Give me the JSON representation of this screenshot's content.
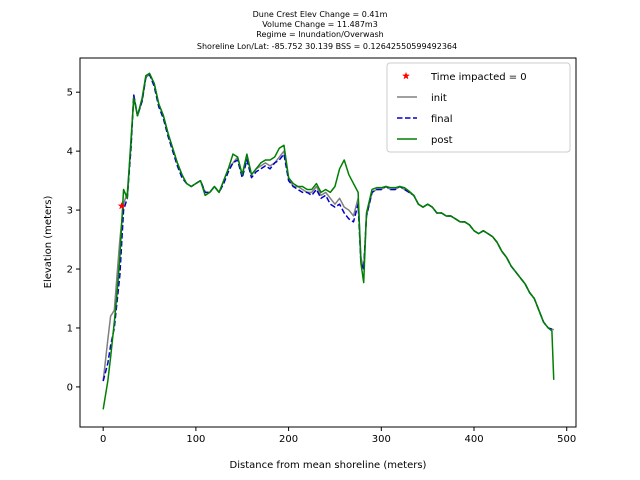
{
  "chart_data": {
    "type": "line",
    "title_lines": [
      "Dune Crest Elev Change = 0.41m",
      "Volume Change = 11.487m3",
      "Regime = Inundation/Overwash",
      "Shoreline Lon/Lat: -85.752 30.139   BSS = 0.12642550599492364"
    ],
    "xlabel": "Distance from mean shoreline (meters)",
    "ylabel": "Elevation (meters)",
    "xlim": [
      -25,
      510
    ],
    "ylim": [
      -0.68,
      5.58
    ],
    "xticks": [
      0,
      100,
      200,
      300,
      400,
      500
    ],
    "yticks": [
      0,
      1,
      2,
      3,
      4,
      5
    ],
    "grid": false,
    "legend_position": "top-right",
    "markers": [
      {
        "name": "Time impacted = 0",
        "color": "#ff0000",
        "symbol": "star",
        "points": [
          [
            20,
            3.07
          ]
        ]
      }
    ],
    "series": [
      {
        "name": "init",
        "color": "#808080",
        "style": "solid",
        "points": [
          [
            0,
            0.1
          ],
          [
            5,
            0.8
          ],
          [
            8,
            1.2
          ],
          [
            12,
            1.3
          ],
          [
            15,
            1.9
          ],
          [
            18,
            2.5
          ],
          [
            22,
            3.1
          ],
          [
            26,
            3.3
          ],
          [
            30,
            4.1
          ],
          [
            33,
            4.95
          ],
          [
            37,
            4.6
          ],
          [
            42,
            4.85
          ],
          [
            46,
            5.25
          ],
          [
            50,
            5.3
          ],
          [
            55,
            5.15
          ],
          [
            60,
            4.8
          ],
          [
            65,
            4.6
          ],
          [
            70,
            4.3
          ],
          [
            75,
            4.05
          ],
          [
            80,
            3.8
          ],
          [
            85,
            3.6
          ],
          [
            90,
            3.45
          ],
          [
            95,
            3.4
          ],
          [
            100,
            3.45
          ],
          [
            105,
            3.5
          ],
          [
            110,
            3.3
          ],
          [
            115,
            3.3
          ],
          [
            120,
            3.4
          ],
          [
            125,
            3.3
          ],
          [
            130,
            3.5
          ],
          [
            135,
            3.7
          ],
          [
            140,
            3.8
          ],
          [
            145,
            3.9
          ],
          [
            150,
            3.6
          ],
          [
            155,
            3.9
          ],
          [
            160,
            3.6
          ],
          [
            165,
            3.7
          ],
          [
            170,
            3.75
          ],
          [
            175,
            3.8
          ],
          [
            180,
            3.75
          ],
          [
            185,
            3.8
          ],
          [
            190,
            3.9
          ],
          [
            195,
            4.0
          ],
          [
            200,
            3.55
          ],
          [
            205,
            3.4
          ],
          [
            210,
            3.4
          ],
          [
            215,
            3.35
          ],
          [
            220,
            3.3
          ],
          [
            225,
            3.3
          ],
          [
            230,
            3.4
          ],
          [
            235,
            3.25
          ],
          [
            240,
            3.3
          ],
          [
            245,
            3.2
          ],
          [
            250,
            3.1
          ],
          [
            255,
            3.2
          ],
          [
            260,
            3.05
          ],
          [
            265,
            3.0
          ],
          [
            270,
            2.9
          ],
          [
            275,
            3.2
          ],
          [
            278,
            2.2
          ],
          [
            281,
            2.0
          ],
          [
            284,
            2.9
          ],
          [
            290,
            3.3
          ],
          [
            295,
            3.35
          ],
          [
            300,
            3.35
          ],
          [
            305,
            3.4
          ],
          [
            310,
            3.35
          ],
          [
            315,
            3.35
          ],
          [
            320,
            3.4
          ],
          [
            325,
            3.35
          ],
          [
            330,
            3.3
          ],
          [
            335,
            3.25
          ],
          [
            340,
            3.1
          ],
          [
            345,
            3.05
          ],
          [
            350,
            3.1
          ],
          [
            355,
            3.05
          ],
          [
            360,
            2.95
          ],
          [
            365,
            2.95
          ],
          [
            370,
            2.9
          ],
          [
            375,
            2.9
          ],
          [
            380,
            2.85
          ],
          [
            385,
            2.8
          ],
          [
            390,
            2.8
          ],
          [
            395,
            2.75
          ],
          [
            400,
            2.65
          ],
          [
            405,
            2.6
          ],
          [
            410,
            2.65
          ],
          [
            415,
            2.6
          ],
          [
            420,
            2.55
          ],
          [
            425,
            2.45
          ],
          [
            430,
            2.3
          ],
          [
            435,
            2.2
          ],
          [
            440,
            2.05
          ],
          [
            445,
            1.95
          ],
          [
            450,
            1.85
          ],
          [
            455,
            1.75
          ],
          [
            460,
            1.6
          ],
          [
            465,
            1.5
          ],
          [
            470,
            1.3
          ],
          [
            475,
            1.1
          ],
          [
            480,
            1.0
          ],
          [
            486,
            0.97
          ]
        ]
      },
      {
        "name": "final",
        "color": "#0000cc",
        "style": "dashed",
        "points": [
          [
            0,
            0.1
          ],
          [
            5,
            0.4
          ],
          [
            8,
            0.7
          ],
          [
            12,
            1.0
          ],
          [
            15,
            1.45
          ],
          [
            18,
            1.9
          ],
          [
            22,
            3.0
          ],
          [
            26,
            3.2
          ],
          [
            30,
            4.05
          ],
          [
            33,
            4.95
          ],
          [
            37,
            4.6
          ],
          [
            42,
            4.85
          ],
          [
            46,
            5.25
          ],
          [
            50,
            5.3
          ],
          [
            55,
            5.1
          ],
          [
            60,
            4.75
          ],
          [
            65,
            4.55
          ],
          [
            70,
            4.25
          ],
          [
            75,
            4.0
          ],
          [
            80,
            3.75
          ],
          [
            85,
            3.55
          ],
          [
            90,
            3.45
          ],
          [
            95,
            3.4
          ],
          [
            100,
            3.45
          ],
          [
            105,
            3.5
          ],
          [
            110,
            3.3
          ],
          [
            115,
            3.3
          ],
          [
            120,
            3.4
          ],
          [
            125,
            3.3
          ],
          [
            130,
            3.45
          ],
          [
            135,
            3.65
          ],
          [
            140,
            3.8
          ],
          [
            145,
            3.85
          ],
          [
            150,
            3.55
          ],
          [
            155,
            3.85
          ],
          [
            160,
            3.55
          ],
          [
            165,
            3.65
          ],
          [
            170,
            3.7
          ],
          [
            175,
            3.75
          ],
          [
            180,
            3.7
          ],
          [
            185,
            3.8
          ],
          [
            190,
            3.85
          ],
          [
            195,
            3.95
          ],
          [
            200,
            3.5
          ],
          [
            205,
            3.4
          ],
          [
            210,
            3.35
          ],
          [
            215,
            3.3
          ],
          [
            220,
            3.3
          ],
          [
            225,
            3.25
          ],
          [
            230,
            3.35
          ],
          [
            235,
            3.2
          ],
          [
            240,
            3.25
          ],
          [
            245,
            3.1
          ],
          [
            250,
            3.05
          ],
          [
            255,
            3.1
          ],
          [
            260,
            2.95
          ],
          [
            265,
            2.85
          ],
          [
            270,
            2.8
          ],
          [
            275,
            3.1
          ],
          [
            278,
            2.1
          ],
          [
            281,
            2.0
          ],
          [
            284,
            2.9
          ],
          [
            290,
            3.3
          ],
          [
            295,
            3.35
          ],
          [
            300,
            3.35
          ],
          [
            305,
            3.4
          ],
          [
            310,
            3.35
          ],
          [
            315,
            3.35
          ],
          [
            320,
            3.4
          ],
          [
            325,
            3.35
          ],
          [
            330,
            3.3
          ],
          [
            335,
            3.25
          ],
          [
            340,
            3.1
          ],
          [
            345,
            3.05
          ],
          [
            350,
            3.1
          ],
          [
            355,
            3.05
          ],
          [
            360,
            2.95
          ],
          [
            365,
            2.95
          ],
          [
            370,
            2.9
          ],
          [
            375,
            2.9
          ],
          [
            380,
            2.85
          ],
          [
            385,
            2.8
          ],
          [
            390,
            2.8
          ],
          [
            395,
            2.75
          ],
          [
            400,
            2.65
          ],
          [
            405,
            2.6
          ],
          [
            410,
            2.65
          ],
          [
            415,
            2.6
          ],
          [
            420,
            2.55
          ],
          [
            425,
            2.45
          ],
          [
            430,
            2.3
          ],
          [
            435,
            2.2
          ],
          [
            440,
            2.05
          ],
          [
            445,
            1.95
          ],
          [
            450,
            1.85
          ],
          [
            455,
            1.75
          ],
          [
            460,
            1.6
          ],
          [
            465,
            1.5
          ],
          [
            470,
            1.3
          ],
          [
            475,
            1.1
          ],
          [
            480,
            1.0
          ],
          [
            486,
            0.97
          ]
        ]
      },
      {
        "name": "post",
        "color": "#008000",
        "style": "solid",
        "points": [
          [
            0,
            -0.38
          ],
          [
            5,
            0.1
          ],
          [
            8,
            0.5
          ],
          [
            12,
            1.1
          ],
          [
            15,
            1.6
          ],
          [
            18,
            2.2
          ],
          [
            22,
            3.35
          ],
          [
            26,
            3.2
          ],
          [
            30,
            4.2
          ],
          [
            33,
            4.9
          ],
          [
            37,
            4.6
          ],
          [
            42,
            4.9
          ],
          [
            46,
            5.28
          ],
          [
            50,
            5.32
          ],
          [
            55,
            5.15
          ],
          [
            60,
            4.8
          ],
          [
            65,
            4.6
          ],
          [
            70,
            4.3
          ],
          [
            75,
            4.05
          ],
          [
            80,
            3.8
          ],
          [
            85,
            3.6
          ],
          [
            90,
            3.45
          ],
          [
            95,
            3.4
          ],
          [
            100,
            3.45
          ],
          [
            105,
            3.5
          ],
          [
            110,
            3.25
          ],
          [
            115,
            3.3
          ],
          [
            120,
            3.4
          ],
          [
            125,
            3.3
          ],
          [
            130,
            3.5
          ],
          [
            135,
            3.7
          ],
          [
            140,
            3.95
          ],
          [
            145,
            3.9
          ],
          [
            150,
            3.6
          ],
          [
            155,
            3.95
          ],
          [
            160,
            3.6
          ],
          [
            165,
            3.7
          ],
          [
            170,
            3.8
          ],
          [
            175,
            3.85
          ],
          [
            180,
            3.85
          ],
          [
            185,
            3.9
          ],
          [
            190,
            4.05
          ],
          [
            195,
            4.1
          ],
          [
            200,
            3.55
          ],
          [
            205,
            3.45
          ],
          [
            210,
            3.4
          ],
          [
            215,
            3.4
          ],
          [
            220,
            3.35
          ],
          [
            225,
            3.35
          ],
          [
            230,
            3.45
          ],
          [
            235,
            3.3
          ],
          [
            240,
            3.35
          ],
          [
            245,
            3.3
          ],
          [
            250,
            3.4
          ],
          [
            255,
            3.7
          ],
          [
            260,
            3.85
          ],
          [
            265,
            3.6
          ],
          [
            270,
            3.45
          ],
          [
            275,
            3.3
          ],
          [
            278,
            2.1
          ],
          [
            281,
            1.77
          ],
          [
            284,
            2.95
          ],
          [
            290,
            3.35
          ],
          [
            295,
            3.38
          ],
          [
            300,
            3.38
          ],
          [
            305,
            3.4
          ],
          [
            310,
            3.38
          ],
          [
            315,
            3.38
          ],
          [
            320,
            3.4
          ],
          [
            325,
            3.38
          ],
          [
            330,
            3.32
          ],
          [
            335,
            3.25
          ],
          [
            340,
            3.1
          ],
          [
            345,
            3.05
          ],
          [
            350,
            3.1
          ],
          [
            355,
            3.05
          ],
          [
            360,
            2.95
          ],
          [
            365,
            2.95
          ],
          [
            370,
            2.9
          ],
          [
            375,
            2.9
          ],
          [
            380,
            2.85
          ],
          [
            385,
            2.8
          ],
          [
            390,
            2.8
          ],
          [
            395,
            2.75
          ],
          [
            400,
            2.65
          ],
          [
            405,
            2.6
          ],
          [
            410,
            2.65
          ],
          [
            415,
            2.6
          ],
          [
            420,
            2.55
          ],
          [
            425,
            2.45
          ],
          [
            430,
            2.3
          ],
          [
            435,
            2.2
          ],
          [
            440,
            2.05
          ],
          [
            445,
            1.95
          ],
          [
            450,
            1.85
          ],
          [
            455,
            1.75
          ],
          [
            460,
            1.6
          ],
          [
            465,
            1.5
          ],
          [
            470,
            1.3
          ],
          [
            475,
            1.1
          ],
          [
            480,
            1.0
          ],
          [
            484,
            0.95
          ],
          [
            486,
            0.12
          ]
        ]
      }
    ],
    "legend": [
      {
        "label": "Time impacted = 0",
        "kind": "marker",
        "color": "#ff0000"
      },
      {
        "label": "init",
        "kind": "line",
        "color": "#808080",
        "style": "solid"
      },
      {
        "label": "final",
        "kind": "line",
        "color": "#0000cc",
        "style": "dashed"
      },
      {
        "label": "post",
        "kind": "line",
        "color": "#008000",
        "style": "solid"
      }
    ]
  }
}
